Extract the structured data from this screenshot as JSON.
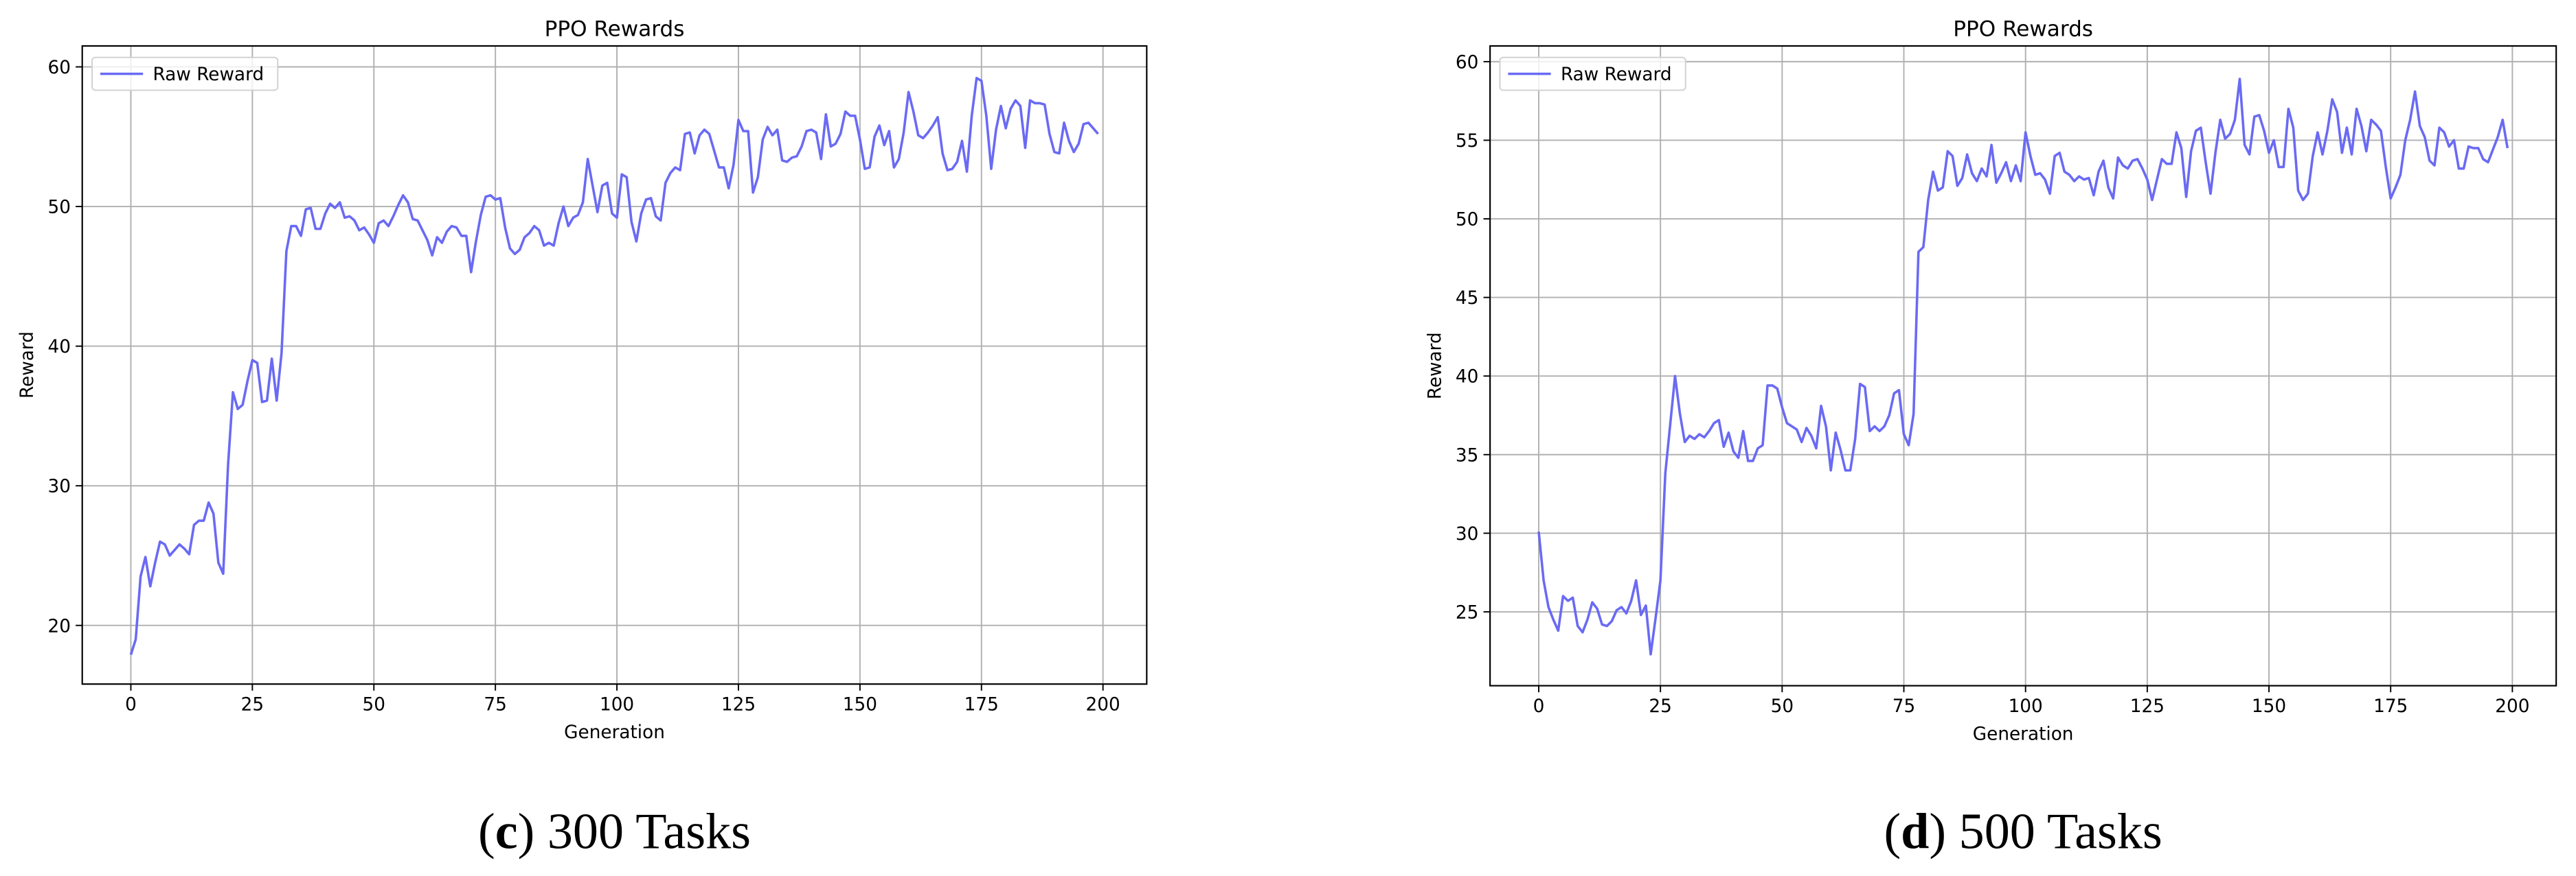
{
  "chart_data": [
    {
      "type": "line",
      "title": "PPO Rewards",
      "x_label": "Generation",
      "y_label": "Reward",
      "caption": [
        "(",
        "c",
        ") 300 Tasks"
      ],
      "x": [
        0,
        1,
        2,
        3,
        4,
        5,
        6,
        7,
        8,
        9,
        10,
        11,
        12,
        13,
        14,
        15,
        16,
        17,
        18,
        19,
        20,
        21,
        22,
        23,
        24,
        25,
        26,
        27,
        28,
        29,
        30,
        31,
        32,
        33,
        34,
        35,
        36,
        37,
        38,
        39,
        40,
        41,
        42,
        43,
        44,
        45,
        46,
        47,
        48,
        49,
        50,
        51,
        52,
        53,
        54,
        55,
        56,
        57,
        58,
        59,
        60,
        61,
        62,
        63,
        64,
        65,
        66,
        67,
        68,
        69,
        70,
        71,
        72,
        73,
        74,
        75,
        76,
        77,
        78,
        79,
        80,
        81,
        82,
        83,
        84,
        85,
        86,
        87,
        88,
        89,
        90,
        91,
        92,
        93,
        94,
        95,
        96,
        97,
        98,
        99,
        100,
        101,
        102,
        103,
        104,
        105,
        106,
        107,
        108,
        109,
        110,
        111,
        112,
        113,
        114,
        115,
        116,
        117,
        118,
        119,
        120,
        121,
        122,
        123,
        124,
        125,
        126,
        127,
        128,
        129,
        130,
        131,
        132,
        133,
        134,
        135,
        136,
        137,
        138,
        139,
        140,
        141,
        142,
        143,
        144,
        145,
        146,
        147,
        148,
        149,
        150,
        151,
        152,
        153,
        154,
        155,
        156,
        157,
        158,
        159,
        160,
        161,
        162,
        163,
        164,
        165,
        166,
        167,
        168,
        169,
        170,
        171,
        172,
        173,
        174,
        175,
        176,
        177,
        178,
        179,
        180,
        181,
        182,
        183,
        184,
        185,
        186,
        187,
        188,
        189,
        190,
        191,
        192,
        193,
        194,
        195,
        196,
        197,
        198,
        199
      ],
      "series": [
        {
          "name": "Raw Reward",
          "color": "#6a6af4",
          "values": [
            17.9,
            19,
            23.5,
            24.9,
            22.8,
            24.5,
            26,
            25.8,
            25,
            25.4,
            25.8,
            25.5,
            25.1,
            27.2,
            27.5,
            27.5,
            28.8,
            28,
            24.5,
            23.7,
            31.5,
            36.7,
            35.5,
            35.8,
            37.5,
            39,
            38.8,
            36,
            36.1,
            39.1,
            36.1,
            39.5,
            46.8,
            48.6,
            48.6,
            47.9,
            49.8,
            49.9,
            48.4,
            48.4,
            49.5,
            50.2,
            49.9,
            50.3,
            49.2,
            49.3,
            49,
            48.3,
            48.5,
            48,
            47.4,
            48.8,
            49,
            48.6,
            49.3,
            50.1,
            50.8,
            50.3,
            49.1,
            49,
            48.3,
            47.6,
            46.5,
            47.8,
            47.4,
            48.2,
            48.6,
            48.5,
            47.9,
            47.9,
            45.3,
            47.5,
            49.4,
            50.7,
            50.8,
            50.5,
            50.6,
            48.5,
            47,
            46.6,
            46.9,
            47.8,
            48.1,
            48.6,
            48.3,
            47.2,
            47.4,
            47.2,
            48.8,
            50,
            48.6,
            49.2,
            49.4,
            50.3,
            53.4,
            51.5,
            49.6,
            51.5,
            51.7,
            49.5,
            49.2,
            52.3,
            52.1,
            48.9,
            47.5,
            49.5,
            50.5,
            50.6,
            49.3,
            49,
            51.7,
            52.4,
            52.8,
            52.6,
            55.2,
            55.3,
            53.8,
            55.1,
            55.5,
            55.2,
            54,
            52.8,
            52.8,
            51.3,
            53,
            56.2,
            55.4,
            55.4,
            51,
            52.1,
            54.8,
            55.7,
            55.1,
            55.5,
            53.3,
            53.2,
            53.5,
            53.6,
            54.3,
            55.4,
            55.5,
            55.3,
            53.4,
            56.6,
            54.3,
            54.5,
            55.2,
            56.8,
            56.5,
            56.5,
            54.8,
            52.7,
            52.8,
            55,
            55.8,
            54.4,
            55.4,
            52.8,
            53.4,
            55.3,
            58.2,
            56.8,
            55.1,
            54.9,
            55.3,
            55.8,
            56.4,
            53.8,
            52.6,
            52.7,
            53.2,
            54.7,
            52.5,
            56.5,
            59.2,
            59,
            56.5,
            52.7,
            55.5,
            57.2,
            55.6,
            57,
            57.6,
            57.2,
            54.2,
            57.6,
            57.4,
            57.4,
            57.3,
            55.2,
            53.9,
            53.8,
            56,
            54.7,
            53.9,
            54.5,
            55.9,
            56,
            55.6,
            55.2
          ]
        }
      ],
      "xlim": [
        -10,
        209
      ],
      "ylim": [
        15.8,
        61.5
      ],
      "xticks": [
        0,
        25,
        50,
        75,
        100,
        125,
        150,
        175,
        200
      ],
      "yticks": [
        20,
        30,
        40,
        50,
        60
      ],
      "grid": true,
      "legend": "upper left"
    },
    {
      "type": "line",
      "title": "PPO Rewards",
      "x_label": "Generation",
      "y_label": "Reward",
      "caption": [
        "(",
        "d",
        ") 500 Tasks"
      ],
      "x": [
        0,
        1,
        2,
        3,
        4,
        5,
        6,
        7,
        8,
        9,
        10,
        11,
        12,
        13,
        14,
        15,
        16,
        17,
        18,
        19,
        20,
        21,
        22,
        23,
        24,
        25,
        26,
        27,
        28,
        29,
        30,
        31,
        32,
        33,
        34,
        35,
        36,
        37,
        38,
        39,
        40,
        41,
        42,
        43,
        44,
        45,
        46,
        47,
        48,
        49,
        50,
        51,
        52,
        53,
        54,
        55,
        56,
        57,
        58,
        59,
        60,
        61,
        62,
        63,
        64,
        65,
        66,
        67,
        68,
        69,
        70,
        71,
        72,
        73,
        74,
        75,
        76,
        77,
        78,
        79,
        80,
        81,
        82,
        83,
        84,
        85,
        86,
        87,
        88,
        89,
        90,
        91,
        92,
        93,
        94,
        95,
        96,
        97,
        98,
        99,
        100,
        101,
        102,
        103,
        104,
        105,
        106,
        107,
        108,
        109,
        110,
        111,
        112,
        113,
        114,
        115,
        116,
        117,
        118,
        119,
        120,
        121,
        122,
        123,
        124,
        125,
        126,
        127,
        128,
        129,
        130,
        131,
        132,
        133,
        134,
        135,
        136,
        137,
        138,
        139,
        140,
        141,
        142,
        143,
        144,
        145,
        146,
        147,
        148,
        149,
        150,
        151,
        152,
        153,
        154,
        155,
        156,
        157,
        158,
        159,
        160,
        161,
        162,
        163,
        164,
        165,
        166,
        167,
        168,
        169,
        170,
        171,
        172,
        173,
        174,
        175,
        176,
        177,
        178,
        179,
        180,
        181,
        182,
        183,
        184,
        185,
        186,
        187,
        188,
        189,
        190,
        191,
        192,
        193,
        194,
        195,
        196,
        197,
        198,
        199
      ],
      "series": [
        {
          "name": "Raw Reward",
          "color": "#6a6af4",
          "values": [
            30.1,
            27,
            25.3,
            24.5,
            23.8,
            26,
            25.7,
            25.9,
            24.1,
            23.7,
            24.5,
            25.6,
            25.2,
            24.2,
            24.1,
            24.4,
            25.1,
            25.3,
            24.9,
            25.7,
            27,
            24.8,
            25.4,
            22.3,
            24.6,
            27,
            33.8,
            36.9,
            40,
            37.6,
            35.8,
            36.2,
            36,
            36.3,
            36.1,
            36.5,
            37,
            37.2,
            35.5,
            36.4,
            35.2,
            34.8,
            36.5,
            34.6,
            34.6,
            35.4,
            35.6,
            39.4,
            39.4,
            39.2,
            38,
            37,
            36.8,
            36.6,
            35.8,
            36.7,
            36.2,
            35.4,
            38.1,
            36.8,
            34,
            36.4,
            35.3,
            34,
            34,
            36,
            39.5,
            39.3,
            36.5,
            36.8,
            36.5,
            36.8,
            37.5,
            38.9,
            39.1,
            36.3,
            35.6,
            37.6,
            47.9,
            48.2,
            51.2,
            53,
            51.8,
            52,
            54.3,
            54,
            52.1,
            52.6,
            54.1,
            52.9,
            52.4,
            53.2,
            52.7,
            54.7,
            52.3,
            52.9,
            53.6,
            52.4,
            53.4,
            52.4,
            55.5,
            54,
            52.8,
            52.9,
            52.5,
            51.6,
            54,
            54.2,
            53,
            52.8,
            52.4,
            52.7,
            52.5,
            52.6,
            51.5,
            53,
            53.7,
            52,
            51.3,
            53.9,
            53.4,
            53.2,
            53.7,
            53.8,
            53.2,
            52.5,
            51.2,
            52.5,
            53.8,
            53.5,
            53.5,
            55.5,
            54.5,
            51.4,
            54.3,
            55.6,
            55.8,
            53.6,
            51.6,
            54.2,
            56.3,
            55.1,
            55.4,
            56.3,
            58.9,
            54.7,
            54.1,
            56.5,
            56.6,
            55.6,
            54.2,
            55,
            53.3,
            53.3,
            57,
            55.8,
            51.8,
            51.2,
            51.6,
            54,
            55.5,
            54.1,
            55.6,
            57.6,
            56.8,
            54.2,
            55.8,
            54.1,
            57,
            55.9,
            54.3,
            56.3,
            56,
            55.6,
            53.3,
            51.3,
            52,
            52.8,
            55,
            56.3,
            58.1,
            55.9,
            55.2,
            53.7,
            53.4,
            55.8,
            55.5,
            54.6,
            55,
            53.2,
            53.2,
            54.6,
            54.5,
            54.5,
            53.8,
            53.6,
            54.4,
            55.2,
            56.3,
            54.5
          ]
        }
      ],
      "xlim": [
        -10,
        209
      ],
      "ylim": [
        20.3,
        61.0
      ],
      "xticks": [
        0,
        25,
        50,
        75,
        100,
        125,
        150,
        175,
        200
      ],
      "yticks": [
        25,
        30,
        35,
        40,
        45,
        50,
        55,
        60
      ],
      "grid": true,
      "legend": "upper left"
    }
  ]
}
